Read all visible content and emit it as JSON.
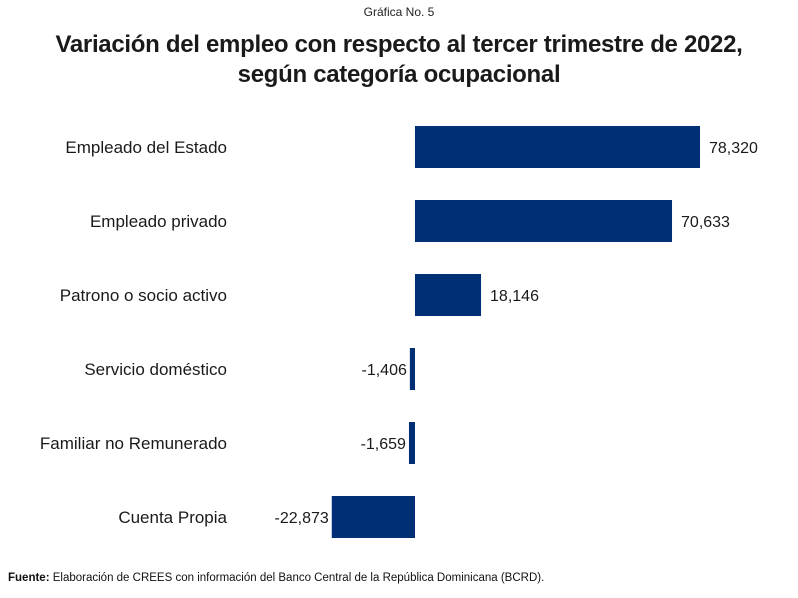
{
  "kicker": "Gráfica No. 5",
  "title_line1": "Variación del empleo con respecto al tercer trimestre de 2022,",
  "title_line2": "según categoría ocupacional",
  "source": {
    "label": "Fuente:",
    "text": " Elaboración de CREES con información del Banco Central de la República Dominicana (BCRD)."
  },
  "colors": {
    "bar": "#002F75"
  },
  "chart_data": {
    "type": "bar",
    "orientation": "horizontal",
    "title": "Variación del empleo con respecto al tercer trimestre de 2022, según categoría ocupacional",
    "xlabel": "",
    "ylabel": "",
    "grid": false,
    "legend": "none",
    "categories": [
      "Empleado del Estado",
      "Empleado privado",
      "Patrono o socio activo",
      "Servicio doméstico",
      "Familiar no Remunerado",
      "Cuenta Propia"
    ],
    "values": [
      78320,
      70633,
      18146,
      -1406,
      -1659,
      -22873
    ],
    "data_labels": [
      "78,320",
      "70,633",
      "18,146",
      "-1,406",
      "-1,659",
      "-22,873"
    ]
  }
}
